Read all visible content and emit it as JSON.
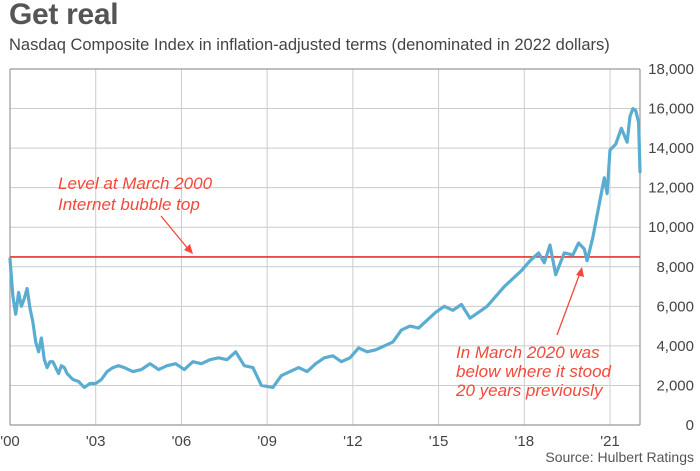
{
  "header": {
    "title": "Get real",
    "subtitle": "Nasdaq Composite Index in inflation-adjusted terms (denominated in 2022 dollars)"
  },
  "footer": {
    "source": "Source: Hulbert Ratings"
  },
  "colors": {
    "series_line": "#5aadd1",
    "reference_line": "#e8322a",
    "annotation_text": "#f2493a",
    "grid": "#cccccc",
    "axis": "#999999"
  },
  "chart_data": {
    "type": "line",
    "title": "Get real",
    "subtitle": "Nasdaq Composite Index in inflation-adjusted terms (denominated in 2022 dollars)",
    "xlabel": "",
    "ylabel": "",
    "xlim": [
      2000,
      2022
    ],
    "ylim": [
      0,
      18000
    ],
    "grid": true,
    "y_axis_side": "right",
    "x_ticks": [
      2000,
      2003,
      2006,
      2009,
      2012,
      2015,
      2018,
      2021
    ],
    "x_tick_labels": [
      "'00",
      "'03",
      "'06",
      "'09",
      "'12",
      "'15",
      "'18",
      "'21"
    ],
    "y_ticks": [
      0,
      2000,
      4000,
      6000,
      8000,
      10000,
      12000,
      14000,
      16000,
      18000
    ],
    "y_tick_labels": [
      "0",
      "2,000",
      "4,000",
      "6,000",
      "8,000",
      "10,000",
      "12,000",
      "14,000",
      "16,000",
      "18,000"
    ],
    "reference_lines": [
      {
        "name": "March 2000 level",
        "value": 8500
      }
    ],
    "annotations": [
      {
        "name": "bubble-top",
        "lines": [
          "Level at March 2000",
          "Internet bubble top"
        ],
        "points_to_x": 2006.5,
        "points_to_value": 8500
      },
      {
        "name": "march-2020",
        "lines": [
          "In March 2020 was",
          "below where it stood",
          "20 years previously"
        ],
        "points_to_x": 2020.2,
        "points_to_value": 8300
      }
    ],
    "series": [
      {
        "name": "Nasdaq Composite (inflation-adjusted)",
        "x": [
          2000.0,
          2000.1,
          2000.2,
          2000.3,
          2000.4,
          2000.5,
          2000.6,
          2000.7,
          2000.8,
          2000.9,
          2001.0,
          2001.1,
          2001.2,
          2001.3,
          2001.4,
          2001.5,
          2001.6,
          2001.7,
          2001.8,
          2001.9,
          2002.0,
          2002.2,
          2002.4,
          2002.6,
          2002.8,
          2003.0,
          2003.2,
          2003.4,
          2003.6,
          2003.8,
          2004.0,
          2004.3,
          2004.6,
          2004.9,
          2005.2,
          2005.5,
          2005.8,
          2006.1,
          2006.4,
          2006.7,
          2007.0,
          2007.3,
          2007.6,
          2007.9,
          2008.2,
          2008.5,
          2008.8,
          2009.0,
          2009.2,
          2009.5,
          2009.8,
          2010.1,
          2010.4,
          2010.7,
          2011.0,
          2011.3,
          2011.6,
          2011.9,
          2012.2,
          2012.5,
          2012.8,
          2013.1,
          2013.4,
          2013.7,
          2014.0,
          2014.3,
          2014.6,
          2014.9,
          2015.2,
          2015.5,
          2015.8,
          2016.1,
          2016.4,
          2016.7,
          2017.0,
          2017.3,
          2017.6,
          2017.9,
          2018.2,
          2018.5,
          2018.7,
          2018.9,
          2019.1,
          2019.4,
          2019.7,
          2019.9,
          2020.1,
          2020.2,
          2020.4,
          2020.6,
          2020.8,
          2020.9,
          2021.0,
          2021.2,
          2021.4,
          2021.6,
          2021.7,
          2021.8,
          2021.9,
          2022.0,
          2022.05
        ],
        "values": [
          8400,
          6500,
          5600,
          6700,
          6000,
          6400,
          6900,
          5900,
          5200,
          4200,
          3700,
          4400,
          3300,
          2900,
          3200,
          3200,
          2900,
          2600,
          3000,
          2900,
          2600,
          2300,
          2200,
          1900,
          2100,
          2100,
          2300,
          2700,
          2900,
          3000,
          2900,
          2700,
          2800,
          3100,
          2800,
          3000,
          3100,
          2800,
          3200,
          3100,
          3300,
          3400,
          3300,
          3700,
          3000,
          2900,
          2000,
          1950,
          1900,
          2500,
          2700,
          2900,
          2700,
          3100,
          3400,
          3500,
          3200,
          3400,
          3900,
          3700,
          3800,
          4000,
          4200,
          4800,
          5000,
          4900,
          5300,
          5700,
          6000,
          5800,
          6100,
          5400,
          5700,
          6000,
          6500,
          7000,
          7400,
          7800,
          8300,
          8700,
          8200,
          9100,
          7600,
          8700,
          8600,
          9200,
          8900,
          8300,
          9500,
          11000,
          12500,
          11700,
          13900,
          14200,
          15000,
          14300,
          15600,
          16000,
          15900,
          15300,
          12800
        ]
      }
    ]
  }
}
